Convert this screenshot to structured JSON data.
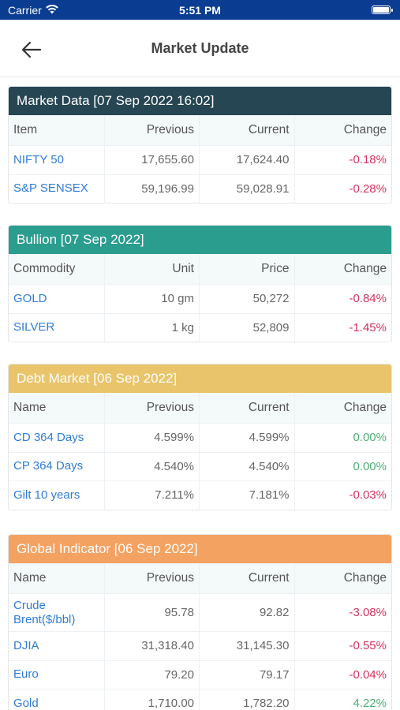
{
  "status_bar": {
    "carrier": "Carrier",
    "time": "5:51 PM"
  },
  "header": {
    "title": "Market Update"
  },
  "colors": {
    "market_data": "#264653",
    "bullion": "#2a9d8f",
    "debt_market": "#e9c46a",
    "global_indicator": "#f4a261",
    "negative": "#d6335b",
    "positive": "#4caf73"
  },
  "sections": [
    {
      "title": "Market Data [07 Sep 2022 16:02]",
      "columns": [
        "Item",
        "Previous",
        "Current",
        "Change"
      ],
      "rows": [
        [
          "NIFTY 50",
          "17,655.60",
          "17,624.40",
          "-0.18%"
        ],
        [
          "S&P SENSEX",
          "59,196.99",
          "59,028.91",
          "-0.28%"
        ]
      ]
    },
    {
      "title": "Bullion [07 Sep 2022]",
      "columns": [
        "Commodity",
        "Unit",
        "Price",
        "Change"
      ],
      "rows": [
        [
          "GOLD",
          "10 gm",
          "50,272",
          "-0.84%"
        ],
        [
          "SILVER",
          "1 kg",
          "52,809",
          "-1.45%"
        ]
      ]
    },
    {
      "title": "Debt Market [06 Sep 2022]",
      "columns": [
        "Name",
        "Previous",
        "Current",
        "Change"
      ],
      "rows": [
        [
          "CD 364 Days",
          "4.599%",
          "4.599%",
          "0.00%"
        ],
        [
          "CP 364 Days",
          "4.540%",
          "4.540%",
          "0.00%"
        ],
        [
          "Gilt 10 years",
          "7.211%",
          "7.181%",
          "-0.03%"
        ]
      ]
    },
    {
      "title": "Global Indicator [06 Sep 2022]",
      "columns": [
        "Name",
        "Previous",
        "Current",
        "Change"
      ],
      "rows": [
        [
          "Crude Brent($/bbl)",
          "95.78",
          "92.82",
          "-3.08%"
        ],
        [
          "DJIA",
          "31,318.40",
          "31,145.30",
          "-0.55%"
        ],
        [
          "Euro",
          "79.20",
          "79.17",
          "-0.04%"
        ],
        [
          "Gold",
          "1,710.00",
          "1,782.20",
          "4.22%"
        ]
      ]
    }
  ]
}
